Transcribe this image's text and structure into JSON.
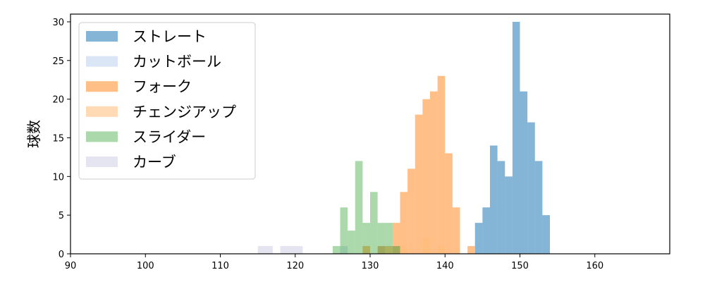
{
  "chart_data": {
    "type": "histogram",
    "ylabel": "球数",
    "xlabel": "",
    "title": "",
    "xlim": [
      90,
      170
    ],
    "ylim": [
      0,
      31
    ],
    "bin_width": 1,
    "x_ticks": [
      90,
      100,
      110,
      120,
      130,
      140,
      150,
      160
    ],
    "y_ticks": [
      0,
      5,
      10,
      15,
      20,
      25,
      30
    ],
    "grid": false,
    "legend_position": "top-left",
    "series": [
      {
        "name": "ストレート",
        "color": "#1f77b4",
        "opacity": 0.55,
        "bins": [
          [
            144,
            4
          ],
          [
            145,
            6
          ],
          [
            146,
            14
          ],
          [
            147,
            12
          ],
          [
            148,
            10
          ],
          [
            149,
            30
          ],
          [
            150,
            21
          ],
          [
            151,
            17
          ],
          [
            152,
            12
          ],
          [
            153,
            5
          ]
        ]
      },
      {
        "name": "カットボール",
        "color": "#aec7e8",
        "opacity": 0.45,
        "bins": [
          [
            126,
            1
          ],
          [
            131,
            1
          ],
          [
            133,
            1
          ]
        ]
      },
      {
        "name": "フォーク",
        "color": "#ff7f0e",
        "opacity": 0.5,
        "bins": [
          [
            129,
            1
          ],
          [
            131,
            1
          ],
          [
            132,
            1
          ],
          [
            133,
            4
          ],
          [
            134,
            8
          ],
          [
            135,
            11
          ],
          [
            136,
            18
          ],
          [
            137,
            20
          ],
          [
            138,
            21
          ],
          [
            139,
            23
          ],
          [
            140,
            13
          ],
          [
            141,
            6
          ],
          [
            143,
            1
          ]
        ]
      },
      {
        "name": "チェンジアップ",
        "color": "#ffbb78",
        "opacity": 0.55,
        "bins": [
          [
            134,
            1
          ],
          [
            137,
            2
          ],
          [
            139,
            1
          ]
        ]
      },
      {
        "name": "スライダー",
        "color": "#2ca02c",
        "opacity": 0.4,
        "bins": [
          [
            125,
            1
          ],
          [
            126,
            6
          ],
          [
            127,
            3
          ],
          [
            128,
            12
          ],
          [
            129,
            4
          ],
          [
            130,
            8
          ],
          [
            131,
            4
          ],
          [
            132,
            4
          ],
          [
            133,
            1
          ]
        ]
      },
      {
        "name": "カーブ",
        "color": "#c5c5e0",
        "opacity": 0.45,
        "bins": [
          [
            115,
            1
          ],
          [
            116,
            1
          ],
          [
            118,
            1
          ],
          [
            119,
            1
          ],
          [
            120,
            1
          ]
        ]
      }
    ]
  }
}
